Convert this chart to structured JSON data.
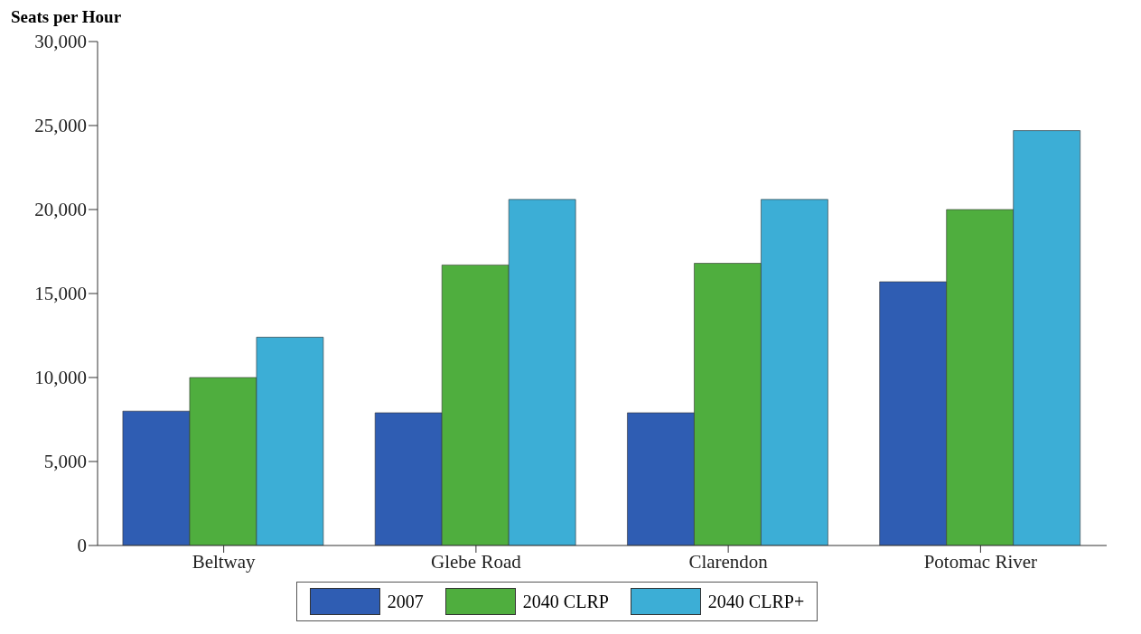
{
  "chart_data": {
    "type": "bar",
    "ylabel": "Seats per Hour",
    "categories": [
      "Beltway",
      "Glebe Road",
      "Clarendon",
      "Potomac River"
    ],
    "series": [
      {
        "name": "2007",
        "color": "#2f5db3",
        "values": [
          8000,
          7900,
          7900,
          15700
        ]
      },
      {
        "name": "2040 CLRP",
        "color": "#4fae3e",
        "values": [
          10000,
          16700,
          16800,
          20000
        ]
      },
      {
        "name": "2040 CLRP+",
        "color": "#3caed6",
        "values": [
          12400,
          20600,
          20600,
          24700
        ]
      }
    ],
    "ylim": [
      0,
      30000
    ],
    "yticks": [
      {
        "value": 0,
        "label": "0"
      },
      {
        "value": 5000,
        "label": "5,000"
      },
      {
        "value": 10000,
        "label": "10,000"
      },
      {
        "value": 15000,
        "label": "15,000"
      },
      {
        "value": 20000,
        "label": "20,000"
      },
      {
        "value": 25000,
        "label": "25,000"
      },
      {
        "value": 30000,
        "label": "30,000"
      }
    ],
    "grid": false,
    "legend": "bottom"
  }
}
